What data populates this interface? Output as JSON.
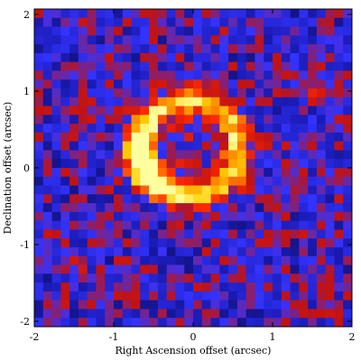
{
  "chart_data": {
    "type": "heatmap",
    "xlabel": "Right Ascension offset (arcsec)",
    "ylabel": "Declination offset (arcsec)",
    "xlim": [
      -2,
      2
    ],
    "ylim": [
      -2.07,
      2.07
    ],
    "x_ticks": [
      -2,
      -1,
      0,
      1,
      2
    ],
    "y_ticks": [
      -2,
      -1,
      0,
      1,
      2
    ],
    "x_tick_labels": [
      "-2",
      "-1",
      "0",
      "1",
      "2"
    ],
    "y_tick_labels": [
      "-2",
      "-1",
      "0",
      "1",
      "2"
    ],
    "grid": false,
    "colormap": [
      "#000000",
      "#1a1ab4",
      "#3333ff",
      "#c21212",
      "#ff2a00",
      "#ff8c00",
      "#ffd000",
      "#ffffa0"
    ],
    "features": [
      {
        "kind": "ring",
        "center": [
          -0.05,
          0.25
        ],
        "radius": 0.62,
        "intensity_peak_offset": [
          -0.65,
          0.05
        ]
      },
      {
        "kind": "hotspot",
        "center": [
          1.5,
          0.92
        ]
      },
      {
        "kind": "hotspot",
        "center": [
          -1.5,
          -1.2
        ]
      }
    ]
  }
}
